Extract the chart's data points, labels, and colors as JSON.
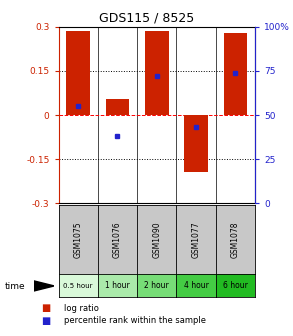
{
  "title": "GDS115 / 8525",
  "samples": [
    "GSM1075",
    "GSM1076",
    "GSM1090",
    "GSM1077",
    "GSM1078"
  ],
  "time_labels": [
    "0.5 hour",
    "1 hour",
    "2 hour",
    "4 hour",
    "6 hour"
  ],
  "time_colors": [
    "#d9f9d9",
    "#aaeaaa",
    "#77dd77",
    "#44cc44",
    "#22bb22"
  ],
  "log_ratios": [
    0.285,
    0.055,
    0.285,
    -0.195,
    0.28
  ],
  "percentile_ranks": [
    55,
    38,
    72,
    43,
    74
  ],
  "ylim_left": [
    -0.3,
    0.3
  ],
  "ylim_right": [
    0,
    100
  ],
  "yticks_left": [
    -0.3,
    -0.15,
    0,
    0.15,
    0.3
  ],
  "yticks_right": [
    0,
    25,
    50,
    75,
    100
  ],
  "bar_color": "#cc2200",
  "percentile_color": "#2222cc",
  "bar_width": 0.6,
  "legend_log_label": "log ratio",
  "legend_pct_label": "percentile rank within the sample",
  "fig_width": 2.93,
  "fig_height": 3.36,
  "dpi": 100
}
